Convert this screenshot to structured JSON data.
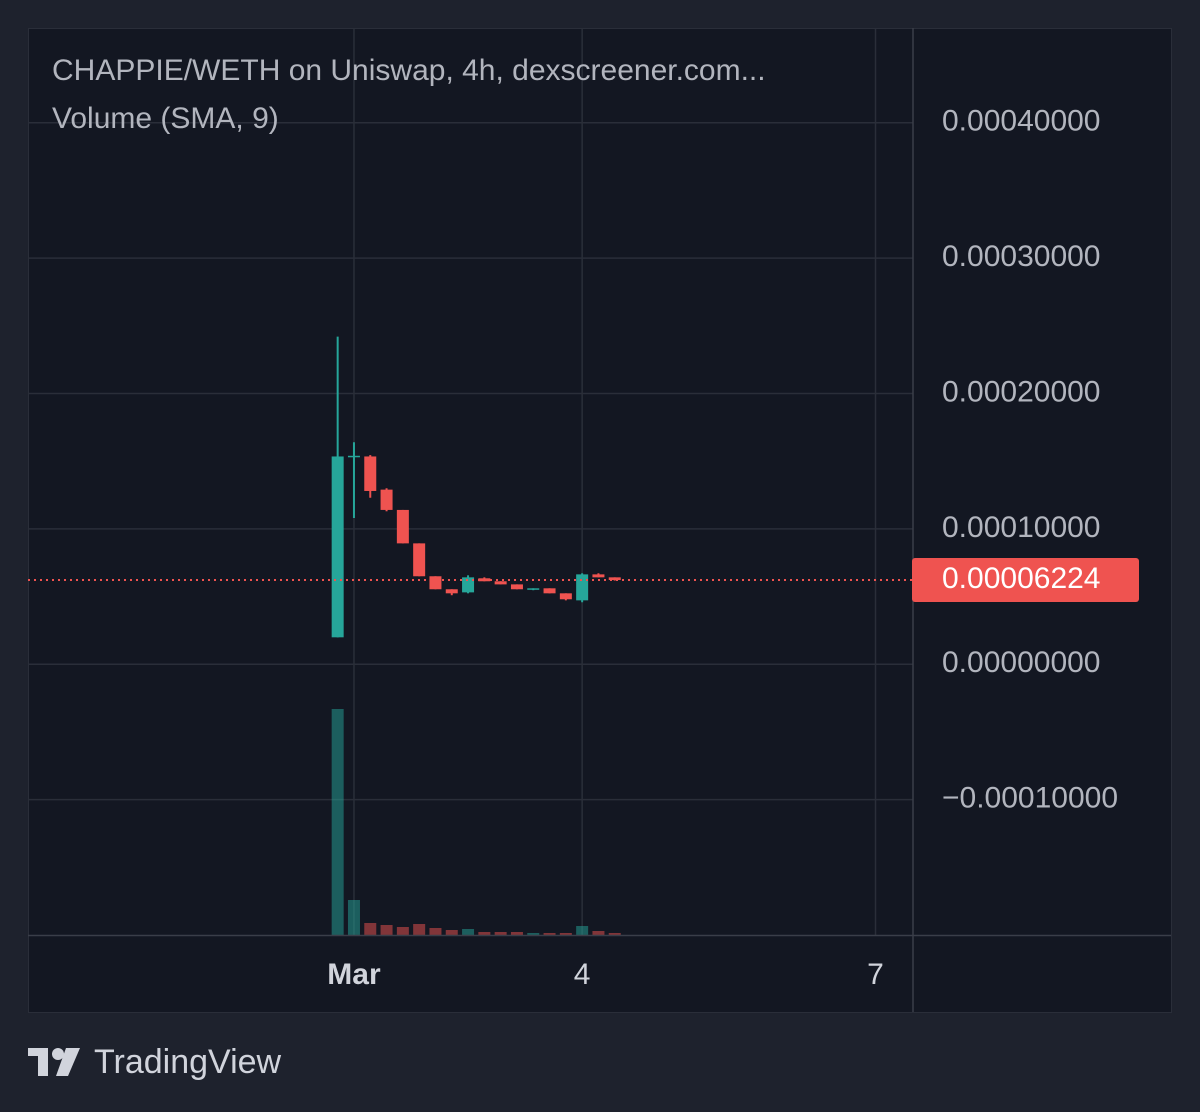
{
  "chart_data": {
    "type": "candlestick",
    "title": "CHAPPIE/WETH on Uniswap, 4h, dexscreener.com...",
    "subtitle": "Volume (SMA, 9)",
    "x": [
      0,
      1,
      2,
      3,
      4,
      5,
      6,
      7,
      8,
      9,
      10,
      11,
      12,
      13,
      14,
      15,
      16,
      17
    ],
    "open": [
      1.99e-05,
      0.0001535,
      0.0001535,
      0.000129,
      0.000114,
      8.93e-05,
      6.5e-05,
      5.54e-05,
      5.31e-05,
      6.35e-05,
      6.13e-05,
      5.9e-05,
      5.54e-05,
      5.61e-05,
      5.24e-05,
      4.72e-05,
      6.64e-05,
      6.42e-05
    ],
    "high": [
      0.000242,
      0.000164,
      0.0001545,
      0.00013,
      0.000114,
      8.93e-05,
      6.5e-05,
      5.54e-05,
      6.57e-05,
      6.42e-05,
      6.13e-05,
      5.9e-05,
      5.61e-05,
      5.61e-05,
      5.24e-05,
      6.72e-05,
      6.72e-05,
      6.42e-05
    ],
    "low": [
      1.99e-05,
      0.000108,
      0.000123,
      0.000113,
      8.93e-05,
      6.5e-05,
      5.54e-05,
      5.1e-05,
      5.24e-05,
      6.13e-05,
      5.9e-05,
      5.54e-05,
      5.47e-05,
      5.24e-05,
      4.72e-05,
      4.58e-05,
      6.42e-05,
      6.18e-05
    ],
    "close": [
      0.0001535,
      0.000154,
      0.000128,
      0.000114,
      8.93e-05,
      6.5e-05,
      5.54e-05,
      5.24e-05,
      6.42e-05,
      6.13e-05,
      5.9e-05,
      5.54e-05,
      5.61e-05,
      5.24e-05,
      4.8e-05,
      6.64e-05,
      6.42e-05,
      6.224e-05
    ],
    "volume": [
      226,
      35,
      12,
      10,
      8,
      11,
      7,
      5,
      6,
      3,
      3,
      3,
      2,
      2,
      2,
      9,
      4,
      2
    ],
    "up_color": "#26a69a",
    "down_color": "#ef5350",
    "xlim": [
      -19,
      35.3
    ],
    "xticks": [
      {
        "value": 1,
        "label": "Mar"
      },
      {
        "value": 15,
        "label": "4"
      },
      {
        "value": 33,
        "label": "7"
      }
    ],
    "ylim": [
      -0.0002,
      0.00047
    ],
    "yticks": [
      {
        "value": -0.0001,
        "label": "−0.00010000"
      },
      {
        "value": 0,
        "label": "0.00000000"
      },
      {
        "value": 0.0001,
        "label": "0.00010000"
      },
      {
        "value": 0.0002,
        "label": "0.00020000"
      },
      {
        "value": 0.0003,
        "label": "0.00030000"
      },
      {
        "value": 0.0004,
        "label": "0.00040000"
      }
    ],
    "last_price": 6.224e-05,
    "grid": true
  },
  "brand": "TradingView"
}
